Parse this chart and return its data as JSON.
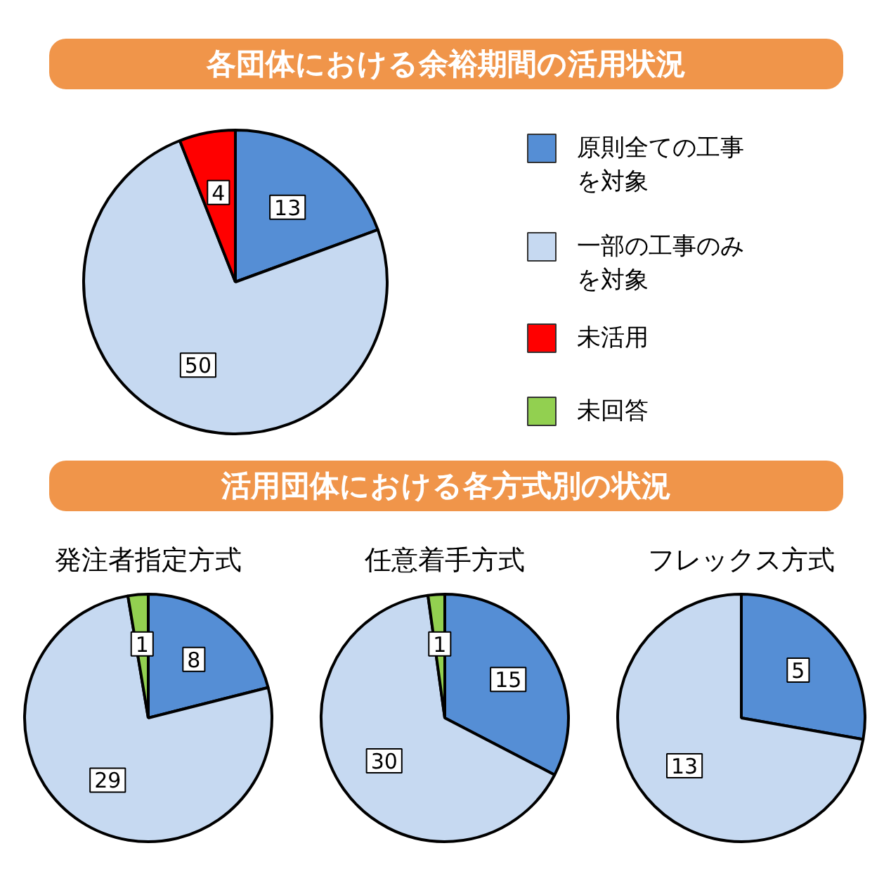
{
  "chart_data": [
    {
      "type": "pie",
      "title": "各団体における余裕期間の活用状況",
      "categories": [
        "原則全ての工事を対象",
        "一部の工事のみを対象",
        "未活用",
        "未回答"
      ],
      "values": [
        13,
        50,
        4,
        0
      ],
      "value_labels": [
        "13",
        "50",
        "4",
        null
      ],
      "colors": [
        "#558ed5",
        "#c6d9f1",
        "#ff0000",
        "#92d050"
      ],
      "legend": "right"
    },
    {
      "type": "pie",
      "title": "発注者指定方式",
      "annotations": [
        "活用団体における各方式別の状況"
      ],
      "categories": [
        null,
        null,
        null
      ],
      "values": [
        8,
        29,
        1
      ],
      "colors": [
        "#558ed5",
        "#c6d9f1",
        "#92d050"
      ],
      "data_labels": true
    },
    {
      "type": "pie",
      "title": "任意着手方式",
      "categories": [
        null,
        null,
        null
      ],
      "values": [
        15,
        30,
        1
      ],
      "colors": [
        "#558ed5",
        "#c6d9f1",
        "#92d050"
      ],
      "data_labels": true
    },
    {
      "type": "pie",
      "title": "フレックス方式",
      "categories": [
        null,
        null
      ],
      "values": [
        5,
        13
      ],
      "colors": [
        "#558ed5",
        "#c6d9f1"
      ],
      "data_labels": true
    }
  ]
}
